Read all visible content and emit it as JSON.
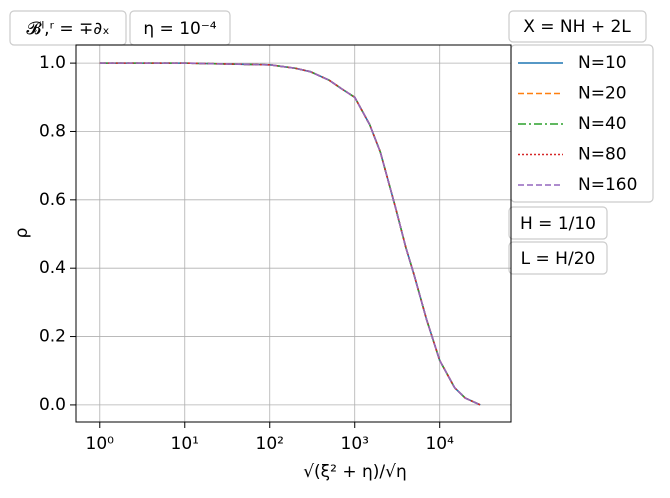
{
  "chart_data": {
    "type": "line",
    "xlabel": "√(ξ² + η)/√η",
    "ylabel": "ρ",
    "annotations": [
      "𝓑ˡ,ʳ = ∓∂ₓ",
      "η = 10⁻⁴",
      "H = 1/10",
      "L = H/20"
    ],
    "legend_title": "X = NH + 2L",
    "x": [
      1,
      10,
      100,
      200,
      300,
      500,
      700,
      1000,
      1500,
      2000,
      3000,
      4000,
      5000,
      7000,
      10000,
      15000,
      20000,
      30000
    ],
    "series": [
      {
        "name": "N=10",
        "color": "#1f77b4",
        "linestyle": "solid",
        "values": [
          1.0,
          1.0,
          0.995,
          0.985,
          0.975,
          0.95,
          0.925,
          0.9,
          0.82,
          0.74,
          0.58,
          0.46,
          0.38,
          0.25,
          0.13,
          0.05,
          0.02,
          0.0
        ]
      },
      {
        "name": "N=20",
        "color": "#ff7f0e",
        "linestyle": "dashed",
        "values": [
          1.0,
          1.0,
          0.995,
          0.985,
          0.975,
          0.95,
          0.925,
          0.9,
          0.82,
          0.74,
          0.58,
          0.46,
          0.38,
          0.25,
          0.13,
          0.05,
          0.02,
          0.0
        ]
      },
      {
        "name": "N=40",
        "color": "#2ca02c",
        "linestyle": "dashdot",
        "values": [
          1.0,
          1.0,
          0.995,
          0.985,
          0.975,
          0.95,
          0.925,
          0.9,
          0.82,
          0.74,
          0.58,
          0.46,
          0.38,
          0.25,
          0.13,
          0.05,
          0.02,
          0.0
        ]
      },
      {
        "name": "N=80",
        "color": "#d62728",
        "linestyle": "dotted",
        "values": [
          1.0,
          1.0,
          0.995,
          0.985,
          0.975,
          0.95,
          0.925,
          0.9,
          0.82,
          0.74,
          0.58,
          0.46,
          0.38,
          0.25,
          0.13,
          0.05,
          0.02,
          0.0
        ]
      },
      {
        "name": "N=160",
        "color": "#9467bd",
        "linestyle": "dashed",
        "values": [
          1.0,
          1.0,
          0.995,
          0.985,
          0.975,
          0.95,
          0.925,
          0.9,
          0.82,
          0.74,
          0.58,
          0.46,
          0.38,
          0.25,
          0.13,
          0.05,
          0.02,
          0.0
        ]
      }
    ],
    "xscale": "log",
    "xlim": [
      0.525,
      69000
    ],
    "xticks": [
      {
        "value": 1,
        "label": "10⁰"
      },
      {
        "value": 10,
        "label": "10¹"
      },
      {
        "value": 100,
        "label": "10²"
      },
      {
        "value": 1000,
        "label": "10³"
      },
      {
        "value": 10000,
        "label": "10⁴"
      }
    ],
    "ylim": [
      -0.05,
      1.053
    ],
    "yticks": [
      {
        "value": 0,
        "label": "0.0"
      },
      0.2,
      0.4,
      0.6,
      0.8,
      {
        "value": 1,
        "label": "1.0"
      }
    ],
    "grid": true,
    "legend": "outside-right"
  }
}
